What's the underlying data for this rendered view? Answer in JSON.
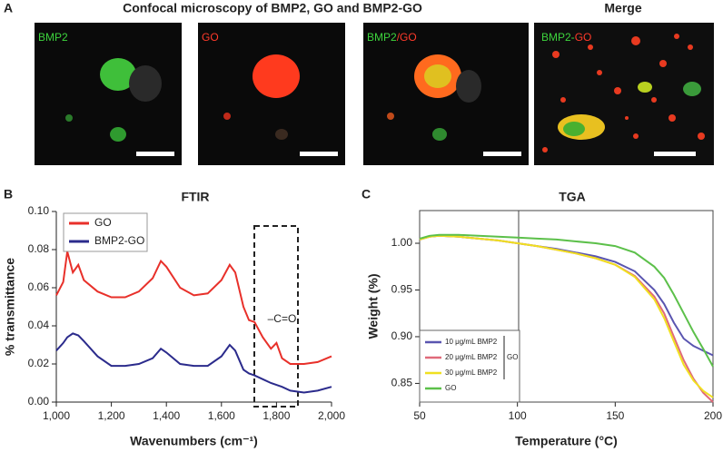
{
  "figure_a": {
    "panel_label": "A",
    "title": "Confocal microscopy of BMP2, GO and BMP2-GO",
    "merge_title": "Merge",
    "images": [
      {
        "label_parts": [
          {
            "text": "BMP2",
            "color": "#3dd43d"
          }
        ]
      },
      {
        "label_parts": [
          {
            "text": "GO",
            "color": "#ff3a2a"
          }
        ]
      },
      {
        "label_parts": [
          {
            "text": "BMP2",
            "color": "#3dd43d"
          },
          {
            "text": "/GO",
            "color": "#ff3a2a"
          }
        ]
      },
      {
        "label_parts": [
          {
            "text": "BMP2-",
            "color": "#3dd43d"
          },
          {
            "text": "GO",
            "color": "#ff3a2a"
          }
        ]
      }
    ]
  },
  "chart_data": [
    {
      "type": "line",
      "panel_label": "B",
      "title": "FTIR",
      "x_label": "Wavenumbers (cm⁻¹)",
      "y_label": "% transmittance",
      "annotation": "–C=O",
      "frame": "axes",
      "legend": "top-left",
      "x": [
        1000,
        1025,
        1040,
        1060,
        1080,
        1100,
        1150,
        1200,
        1250,
        1300,
        1350,
        1380,
        1400,
        1450,
        1500,
        1550,
        1600,
        1630,
        1650,
        1680,
        1700,
        1720,
        1750,
        1780,
        1800,
        1820,
        1850,
        1900,
        1950,
        2000
      ],
      "series": [
        {
          "name": "GO",
          "color": "#e8302a",
          "values": [
            0.056,
            0.063,
            0.079,
            0.068,
            0.072,
            0.064,
            0.058,
            0.055,
            0.055,
            0.058,
            0.065,
            0.074,
            0.071,
            0.06,
            0.056,
            0.057,
            0.064,
            0.072,
            0.068,
            0.05,
            0.043,
            0.042,
            0.034,
            0.028,
            0.031,
            0.023,
            0.02,
            0.02,
            0.021,
            0.024
          ]
        },
        {
          "name": "BMP2-GO",
          "color": "#2b2b8c",
          "values": [
            0.027,
            0.031,
            0.034,
            0.036,
            0.035,
            0.032,
            0.024,
            0.019,
            0.019,
            0.02,
            0.023,
            0.028,
            0.026,
            0.02,
            0.019,
            0.019,
            0.024,
            0.03,
            0.027,
            0.017,
            0.015,
            0.014,
            0.012,
            0.01,
            0.009,
            0.008,
            0.006,
            0.005,
            0.006,
            0.008
          ]
        }
      ],
      "xlim": [
        1000,
        2000
      ],
      "xticks": [
        {
          "value": 1000,
          "label": "1,000"
        },
        {
          "value": 1200,
          "label": "1,200"
        },
        {
          "value": 1400,
          "label": "1,400"
        },
        {
          "value": 1600,
          "label": "1,600"
        },
        {
          "value": 1800,
          "label": "1,800"
        },
        {
          "value": 2000,
          "label": "2,000"
        }
      ],
      "ylim": [
        0,
        0.1
      ],
      "yticks": [
        {
          "value": 0,
          "label": "0.00"
        },
        {
          "value": 0.02,
          "label": "0.02"
        },
        {
          "value": 0.04,
          "label": "0.04"
        },
        {
          "value": 0.06,
          "label": "0.06"
        },
        {
          "value": 0.08,
          "label": "0.08"
        },
        {
          "value": 0.1,
          "label": "0.10"
        }
      ]
    },
    {
      "type": "line",
      "panel_label": "C",
      "title": "TGA",
      "x_label": "Temperature (°C)",
      "y_label": "Weight (%)",
      "frame": "box",
      "legend": "bottom-left",
      "legend_group_label": "GO",
      "x": [
        50,
        55,
        60,
        70,
        80,
        90,
        100,
        110,
        120,
        130,
        140,
        150,
        160,
        170,
        175,
        180,
        185,
        190,
        195,
        200
      ],
      "series": [
        {
          "name": "10 μg/mL BMP2",
          "color": "#5a55b0",
          "values": [
            1.004,
            1.007,
            1.008,
            1.007,
            1.005,
            1.003,
            1.0,
            0.997,
            0.994,
            0.99,
            0.986,
            0.98,
            0.97,
            0.95,
            0.935,
            0.915,
            0.898,
            0.89,
            0.885,
            0.88
          ]
        },
        {
          "name": "20 μg/mL BMP2",
          "color": "#e06a7a",
          "values": [
            1.004,
            1.007,
            1.008,
            1.007,
            1.005,
            1.003,
            1.0,
            0.997,
            0.993,
            0.989,
            0.984,
            0.977,
            0.965,
            0.943,
            0.925,
            0.9,
            0.875,
            0.855,
            0.84,
            0.83
          ]
        },
        {
          "name": "30 μg/mL BMP2",
          "color": "#f0e020",
          "values": [
            1.004,
            1.007,
            1.008,
            1.007,
            1.005,
            1.003,
            1.0,
            0.997,
            0.993,
            0.989,
            0.984,
            0.977,
            0.964,
            0.94,
            0.92,
            0.895,
            0.87,
            0.853,
            0.842,
            0.835
          ]
        },
        {
          "name": "GO",
          "color": "#5cc04a",
          "values": [
            1.005,
            1.008,
            1.009,
            1.009,
            1.008,
            1.007,
            1.006,
            1.005,
            1.004,
            1.002,
            1.0,
            0.997,
            0.99,
            0.975,
            0.963,
            0.945,
            0.925,
            0.905,
            0.887,
            0.868
          ]
        }
      ],
      "xlim": [
        50,
        200
      ],
      "xticks": [
        50,
        100,
        150,
        200
      ],
      "ylim": [
        0.83,
        1.035
      ],
      "yticks": [
        {
          "value": 0.85,
          "label": "0.85"
        },
        {
          "value": 0.9,
          "label": "0.90"
        },
        {
          "value": 0.95,
          "label": "0.95"
        },
        {
          "value": 1.0,
          "label": "1.00"
        }
      ]
    }
  ]
}
